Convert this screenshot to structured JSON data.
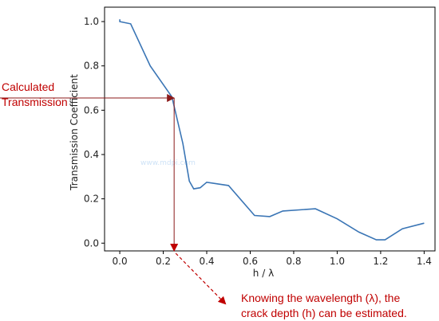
{
  "chart_data": {
    "type": "line",
    "xlabel": "h / λ",
    "ylabel": "Transmission Coefficient",
    "xlim": [
      -0.07,
      1.45
    ],
    "ylim": [
      -0.035,
      1.065
    ],
    "xticks": [
      0.0,
      0.2,
      0.4,
      0.6,
      0.8,
      1.0,
      1.2,
      1.4
    ],
    "xtick_labels": [
      "0.0",
      "0.2",
      "0.4",
      "0.6",
      "0.8",
      "1.0",
      "1.2",
      "1.4"
    ],
    "yticks": [
      0.0,
      0.2,
      0.4,
      0.6,
      0.8,
      1.0
    ],
    "ytick_labels": [
      "0.0",
      "0.2",
      "0.4",
      "0.6",
      "0.8",
      "1.0"
    ],
    "grid": false,
    "line_color": "#3a75b5",
    "series": [
      {
        "x": [
          0.0,
          0.0,
          0.05,
          0.14,
          0.24,
          0.29,
          0.32,
          0.34,
          0.37,
          0.4,
          0.5,
          0.62,
          0.69,
          0.75,
          0.9,
          1.0,
          1.1,
          1.18,
          1.22,
          1.3,
          1.4
        ],
        "y": [
          1.01,
          1.0,
          0.99,
          0.8,
          0.66,
          0.45,
          0.28,
          0.245,
          0.25,
          0.275,
          0.26,
          0.125,
          0.12,
          0.145,
          0.155,
          0.11,
          0.05,
          0.015,
          0.015,
          0.065,
          0.09
        ]
      }
    ],
    "marker": {
      "x": 0.25,
      "y": 0.655
    }
  },
  "annotations": {
    "calculated_line1": "Calculated",
    "calculated_line2": "Transmission",
    "knowing_line1": "Knowing the wavelength (λ), the",
    "knowing_line2": "crack depth (h) can be estimated.",
    "color": "#c00000",
    "arrow_color": "#8b1a1a"
  },
  "watermark": "www.mdpi.com"
}
